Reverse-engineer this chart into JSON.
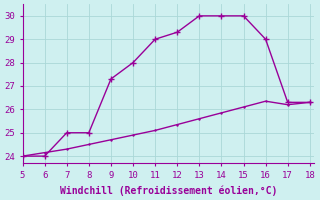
{
  "x_main": [
    5,
    6,
    7,
    8,
    9,
    10,
    11,
    12,
    13,
    14,
    15,
    16,
    17,
    18
  ],
  "y_main": [
    24.0,
    24.0,
    25.0,
    25.0,
    27.3,
    28.0,
    29.0,
    29.3,
    30.0,
    30.0,
    30.0,
    29.0,
    26.3,
    26.3
  ],
  "x_secondary": [
    5,
    6,
    7,
    8,
    9,
    10,
    11,
    12,
    13,
    14,
    15,
    16,
    17,
    18
  ],
  "y_secondary": [
    24.0,
    24.15,
    24.3,
    24.5,
    24.7,
    24.9,
    25.1,
    25.35,
    25.6,
    25.85,
    26.1,
    26.35,
    26.2,
    26.3
  ],
  "line_color": "#990099",
  "background_color": "#cff0f0",
  "grid_color": "#aad8d8",
  "xlabel": "Windchill (Refroidissement éolien,°C)",
  "xlabel_color": "#990099",
  "tick_color": "#990099",
  "spine_color": "#990099",
  "xlim": [
    5,
    18.2
  ],
  "ylim": [
    23.7,
    30.5
  ],
  "xticks": [
    5,
    6,
    7,
    8,
    9,
    10,
    11,
    12,
    13,
    14,
    15,
    16,
    17,
    18
  ],
  "yticks": [
    24,
    25,
    26,
    27,
    28,
    29,
    30
  ],
  "marker_main": "+",
  "markersize_main": 5,
  "marker_secondary": "+",
  "markersize_secondary": 2,
  "linewidth_main": 1.0,
  "linewidth_secondary": 1.0
}
